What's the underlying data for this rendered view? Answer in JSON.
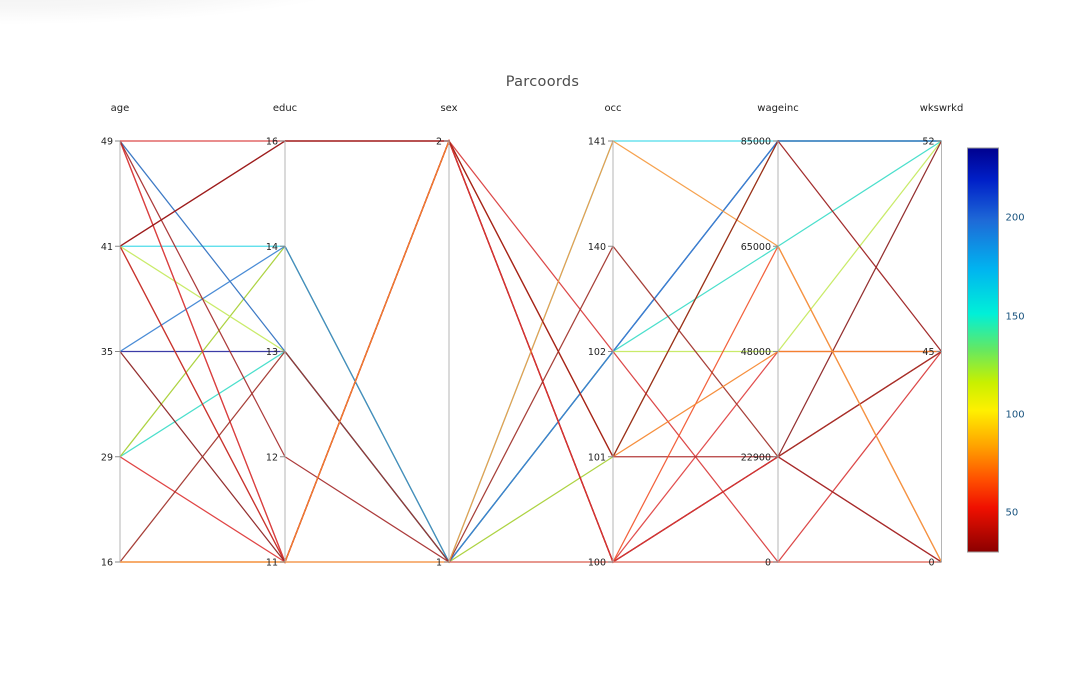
{
  "title": "Parcoords",
  "chart_data": {
    "type": "parallel-coordinates",
    "title": "Parcoords",
    "tick_spacing": "even",
    "axes": [
      {
        "name": "age",
        "ticks": [
          "49",
          "41",
          "35",
          "29",
          "16"
        ]
      },
      {
        "name": "educ",
        "ticks": [
          "16",
          "14",
          "13",
          "12",
          "11"
        ]
      },
      {
        "name": "sex",
        "ticks": [
          "2",
          "1"
        ]
      },
      {
        "name": "occ",
        "ticks": [
          "141",
          "140",
          "102",
          "101",
          "100"
        ]
      },
      {
        "name": "wageinc",
        "ticks": [
          "85000",
          "65000",
          "48000",
          "22900",
          "0"
        ]
      },
      {
        "name": "wkswrkd",
        "ticks": [
          "52",
          "45",
          "0"
        ]
      }
    ],
    "lines": [
      {
        "values": [
          "35",
          "13",
          "1",
          "102",
          "85000",
          "52"
        ],
        "color": "#2b2ba0"
      },
      {
        "values": [
          "41",
          "14",
          "1",
          "141",
          "85000",
          "52"
        ],
        "color": "#3fd9e8"
      },
      {
        "values": [
          "29",
          "13",
          "1",
          "102",
          "65000",
          "52"
        ],
        "color": "#3cdcc8"
      },
      {
        "values": [
          "29",
          "14",
          "1",
          "101",
          "85000",
          "52"
        ],
        "color": "#a6cf32"
      },
      {
        "values": [
          "41",
          "13",
          "1",
          "102",
          "48000",
          "52"
        ],
        "color": "#c4e95c"
      },
      {
        "values": [
          "49",
          "13",
          "1",
          "102",
          "85000",
          "52"
        ],
        "color": "#2e6fc0"
      },
      {
        "values": [
          "35",
          "14",
          "1",
          "102",
          "85000",
          "52"
        ],
        "color": "#3b82d2"
      },
      {
        "values": [
          "49",
          "16",
          "2",
          "102",
          "0",
          "45"
        ],
        "color": "#d93a3a"
      },
      {
        "values": [
          "49",
          "11",
          "2",
          "100",
          "22900",
          "0"
        ],
        "color": "#b22222"
      },
      {
        "values": [
          "49",
          "11",
          "2",
          "100",
          "48000",
          "45"
        ],
        "color": "#e04040"
      },
      {
        "values": [
          "49",
          "12",
          "1",
          "100",
          "22900",
          "0"
        ],
        "color": "#a52a2a"
      },
      {
        "values": [
          "41",
          "16",
          "2",
          "101",
          "22900",
          "45"
        ],
        "color": "#af2b2b"
      },
      {
        "values": [
          "41",
          "11",
          "2",
          "100",
          "65000",
          "0"
        ],
        "color": "#f2552d"
      },
      {
        "values": [
          "41",
          "11",
          "2",
          "100",
          "0",
          "0"
        ],
        "color": "#c23030"
      },
      {
        "values": [
          "35",
          "11",
          "2",
          "100",
          "22900",
          "52"
        ],
        "color": "#8b1e1e"
      },
      {
        "values": [
          "29",
          "11",
          "2",
          "100",
          "22900",
          "45"
        ],
        "color": "#dd3535"
      },
      {
        "values": [
          "16",
          "11",
          "1",
          "100",
          "0",
          "0"
        ],
        "color": "#e87c6c"
      },
      {
        "values": [
          "16",
          "13",
          "1",
          "140",
          "22900",
          "45"
        ],
        "color": "#a03028"
      },
      {
        "values": [
          "16",
          "11",
          "2",
          "101",
          "48000",
          "45"
        ],
        "color": "#f5862e"
      },
      {
        "values": [
          "16",
          "11",
          "1",
          "141",
          "65000",
          "0"
        ],
        "color": "#f59a40"
      },
      {
        "values": [
          "41",
          "16",
          "2",
          "101",
          "85000",
          "45"
        ],
        "color": "#9b1b1b"
      }
    ],
    "colorbar": {
      "colormap": "jet-reversed",
      "tick_labels": [
        "200",
        "150",
        "100",
        "50"
      ],
      "top_color": "#00008f",
      "bottom_color": "#8b0000"
    }
  }
}
